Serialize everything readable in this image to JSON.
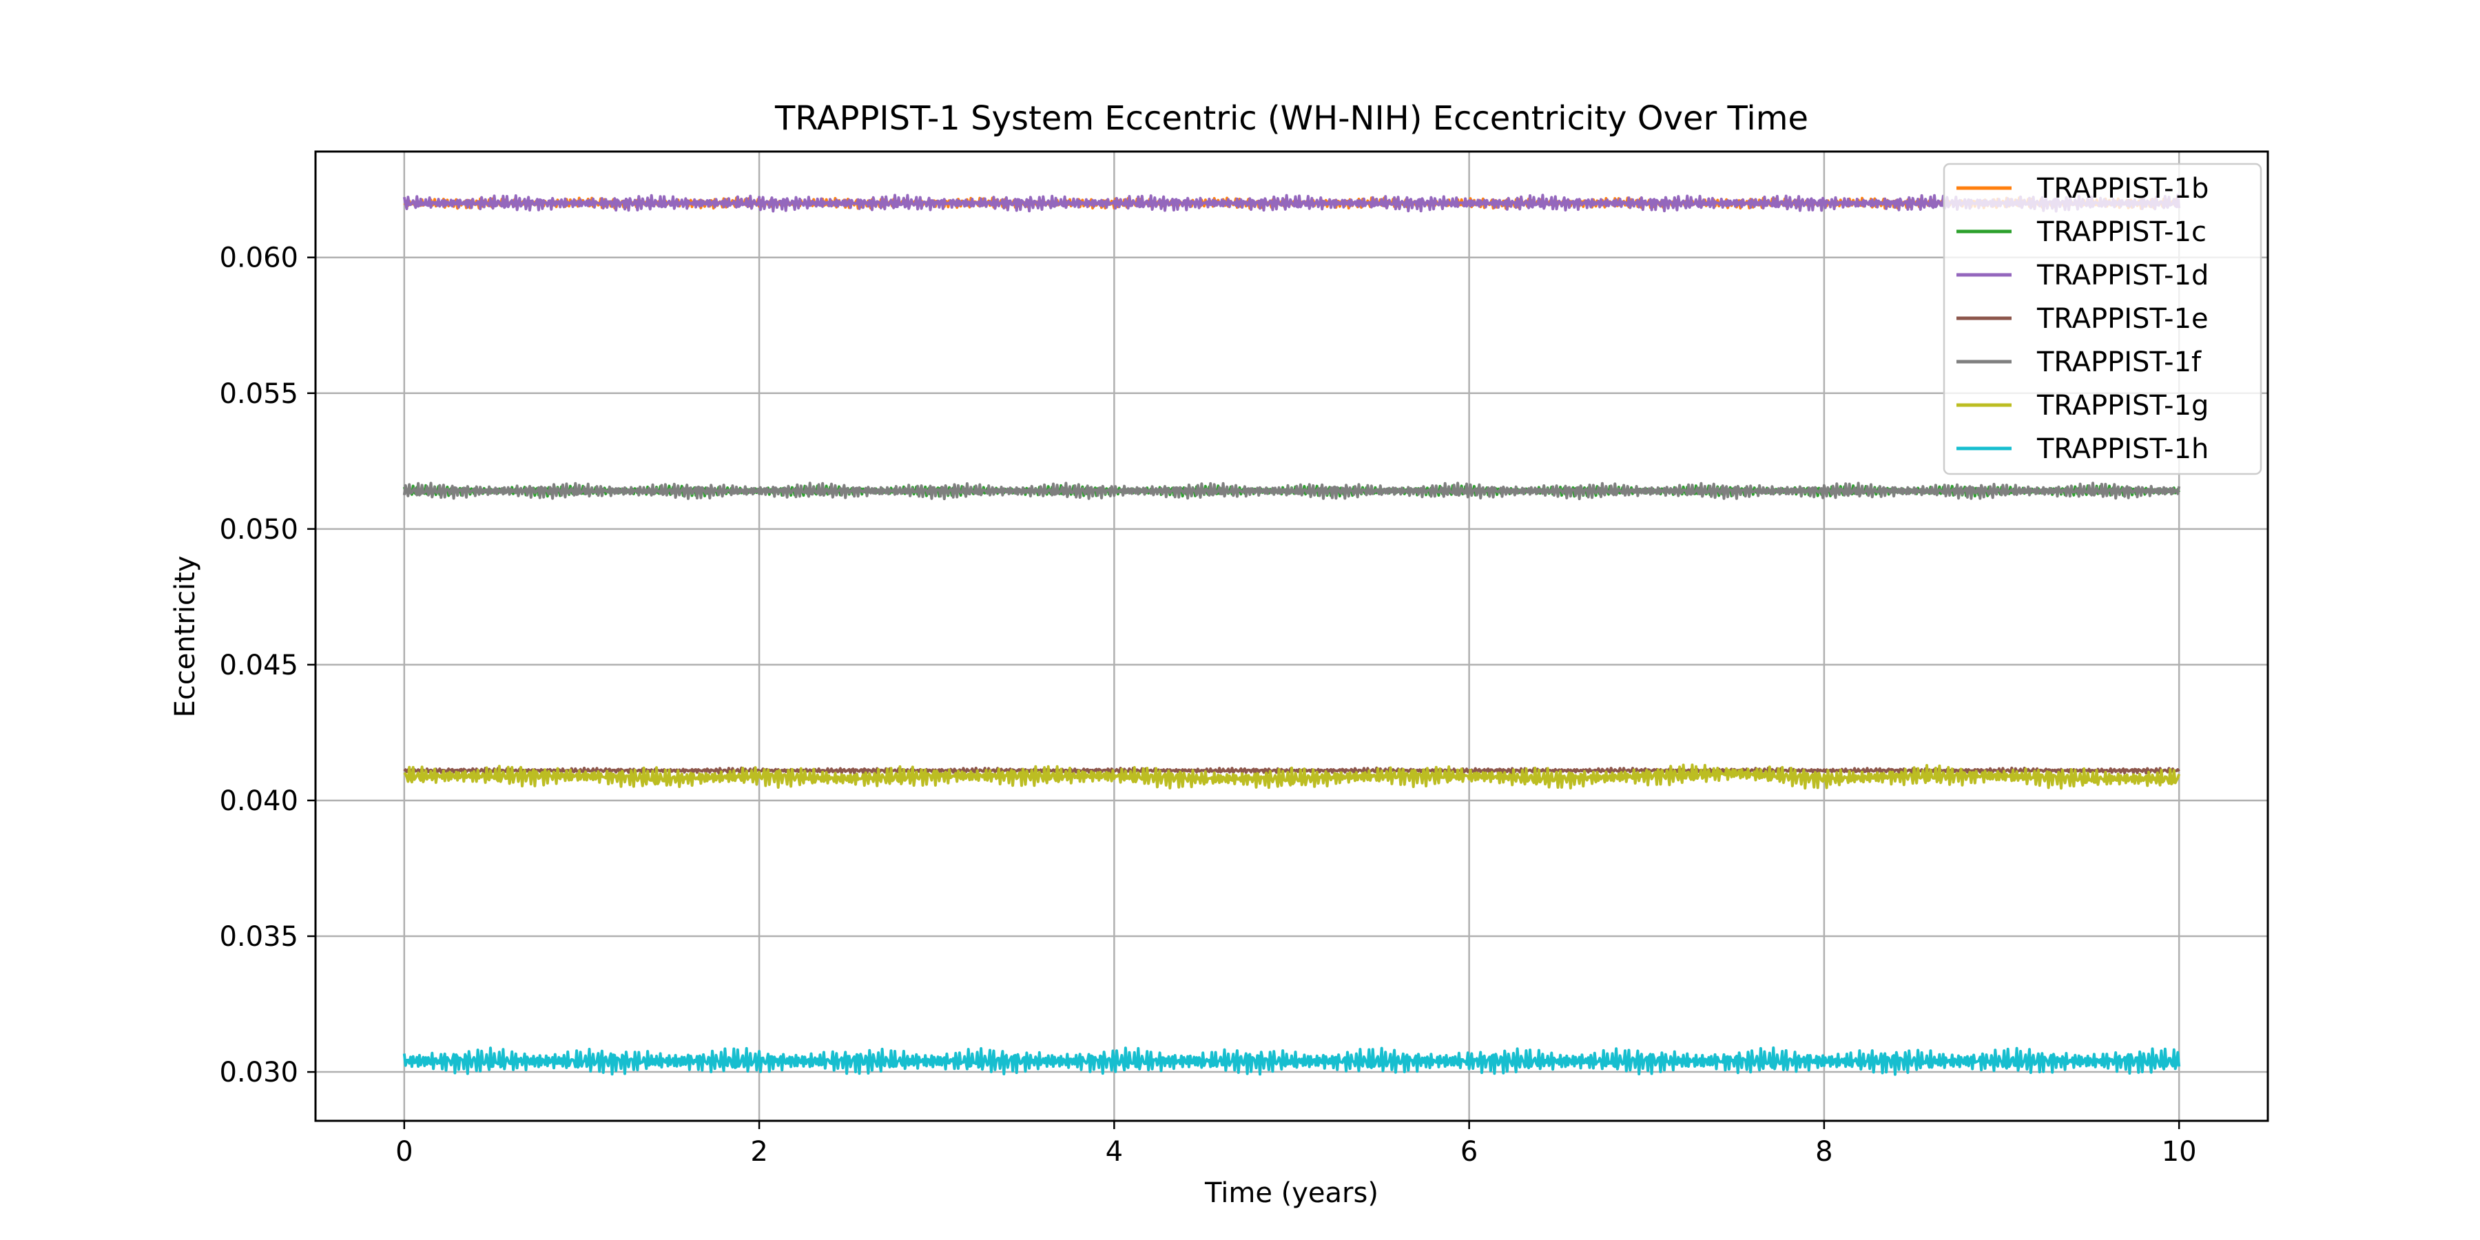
{
  "chart_data": {
    "type": "line",
    "title": "TRAPPIST-1 System Eccentric (WH-NIH) Eccentricity Over Time",
    "xlabel": "Time (years)",
    "ylabel": "Eccentricity",
    "xlim": [
      -0.5,
      10.5
    ],
    "ylim": [
      0.0282,
      0.0639
    ],
    "xticks": [
      0,
      2,
      4,
      6,
      8,
      10
    ],
    "xtick_labels": [
      "0",
      "2",
      "4",
      "6",
      "8",
      "10"
    ],
    "yticks": [
      0.03,
      0.035,
      0.04,
      0.045,
      0.05,
      0.055,
      0.06
    ],
    "ytick_labels": [
      "0.030",
      "0.035",
      "0.040",
      "0.045",
      "0.050",
      "0.055",
      "0.060"
    ],
    "grid": true,
    "legend_position": "top-right",
    "x": [
      0,
      0.5,
      1,
      1.5,
      2,
      2.5,
      3,
      3.5,
      4,
      4.5,
      5,
      5.5,
      6,
      6.5,
      7,
      7.5,
      8,
      8.5,
      9,
      9.5,
      10
    ],
    "series": [
      {
        "name": "TRAPPIST-1b",
        "color": "#ff7f0e",
        "amplitude": 0.0002,
        "values": [
          0.062,
          0.062,
          0.062,
          0.062,
          0.062,
          0.062,
          0.062,
          0.062,
          0.062,
          0.062,
          0.062,
          0.062,
          0.062,
          0.062,
          0.062,
          0.062,
          0.062,
          0.062,
          0.062,
          0.062,
          0.062
        ]
      },
      {
        "name": "TRAPPIST-1c",
        "color": "#2ca02c",
        "amplitude": 0.0002,
        "values": [
          0.0514,
          0.0514,
          0.0514,
          0.0514,
          0.0514,
          0.0514,
          0.0514,
          0.0514,
          0.0514,
          0.0514,
          0.0514,
          0.0514,
          0.0514,
          0.0514,
          0.0514,
          0.0514,
          0.0514,
          0.0514,
          0.0514,
          0.0514,
          0.0514
        ]
      },
      {
        "name": "TRAPPIST-1d",
        "color": "#9467bd",
        "amplitude": 0.0003,
        "values": [
          0.062,
          0.062,
          0.062,
          0.062,
          0.062,
          0.062,
          0.062,
          0.062,
          0.062,
          0.062,
          0.062,
          0.062,
          0.062,
          0.062,
          0.062,
          0.062,
          0.062,
          0.062,
          0.062,
          0.062,
          0.062
        ]
      },
      {
        "name": "TRAPPIST-1e",
        "color": "#8c564b",
        "amplitude": 0.0001,
        "values": [
          0.0411,
          0.0411,
          0.0411,
          0.0411,
          0.0411,
          0.0411,
          0.0411,
          0.0411,
          0.0411,
          0.0411,
          0.0411,
          0.0411,
          0.0411,
          0.0411,
          0.0411,
          0.0411,
          0.0411,
          0.0411,
          0.0411,
          0.0411,
          0.0411
        ]
      },
      {
        "name": "TRAPPIST-1f",
        "color": "#7f7f7f",
        "amplitude": 0.0003,
        "values": [
          0.0514,
          0.0514,
          0.0514,
          0.0514,
          0.0514,
          0.0514,
          0.0514,
          0.0514,
          0.0514,
          0.0514,
          0.0514,
          0.0514,
          0.0514,
          0.0514,
          0.0514,
          0.0514,
          0.0514,
          0.0514,
          0.0514,
          0.0514,
          0.0514
        ]
      },
      {
        "name": "TRAPPIST-1g",
        "color": "#bcbd22",
        "amplitude": 0.0004,
        "values": [
          0.0409,
          0.0409,
          0.0409,
          0.0408,
          0.0409,
          0.0408,
          0.0409,
          0.0409,
          0.0409,
          0.0408,
          0.0408,
          0.0409,
          0.0409,
          0.0408,
          0.0409,
          0.041,
          0.0408,
          0.0409,
          0.0409,
          0.0408,
          0.0408
        ]
      },
      {
        "name": "TRAPPIST-1h",
        "color": "#17becf",
        "amplitude": 0.0005,
        "values": [
          0.0304,
          0.0304,
          0.0304,
          0.0304,
          0.0304,
          0.0304,
          0.0304,
          0.0304,
          0.0304,
          0.0304,
          0.0304,
          0.0304,
          0.0304,
          0.0304,
          0.0304,
          0.0304,
          0.0304,
          0.0304,
          0.0304,
          0.0304,
          0.0304
        ]
      }
    ]
  }
}
